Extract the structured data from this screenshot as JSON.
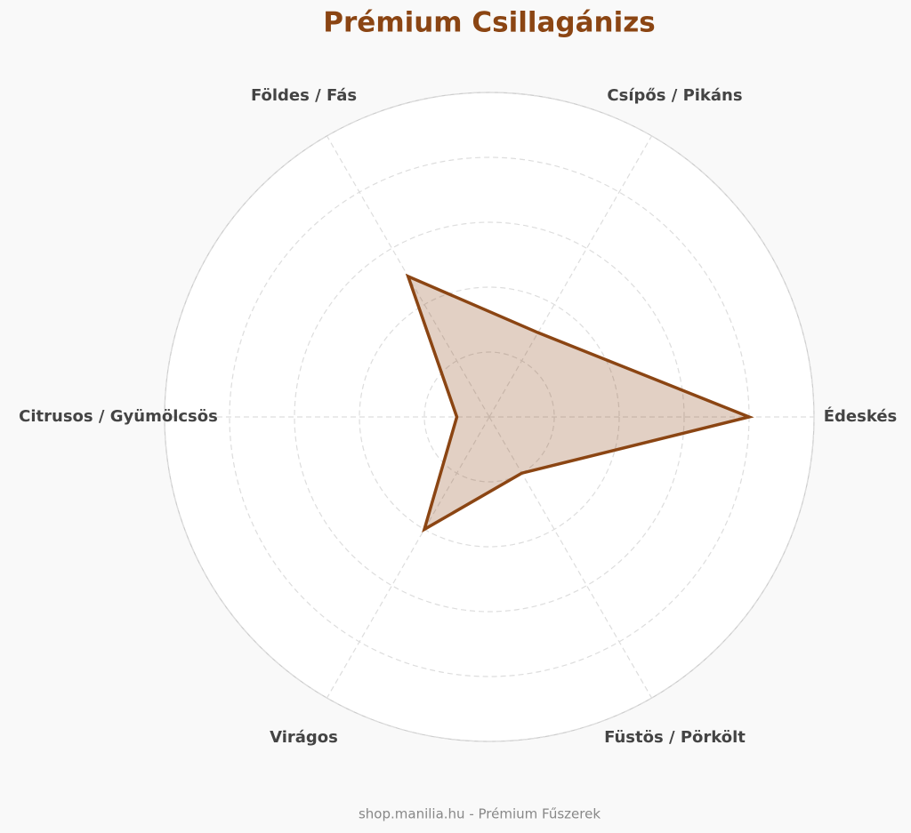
{
  "chart_data": {
    "type": "radar",
    "title": "Prémium Csillagánizs",
    "categories": [
      "Édeskés",
      "Csípős / Pikáns",
      "Földes / Fás",
      "Citrusos / Gyümölcsös",
      "Virágos",
      "Füstös / Pörkölt"
    ],
    "values": [
      8,
      3,
      5,
      1,
      4,
      2
    ],
    "color": "#8b4513",
    "rlim": [
      0,
      10
    ],
    "rticks": [
      2,
      4,
      6,
      8,
      10
    ],
    "grid": true,
    "footer": "shop.manilia.hu - Prémium Fűszerek"
  }
}
